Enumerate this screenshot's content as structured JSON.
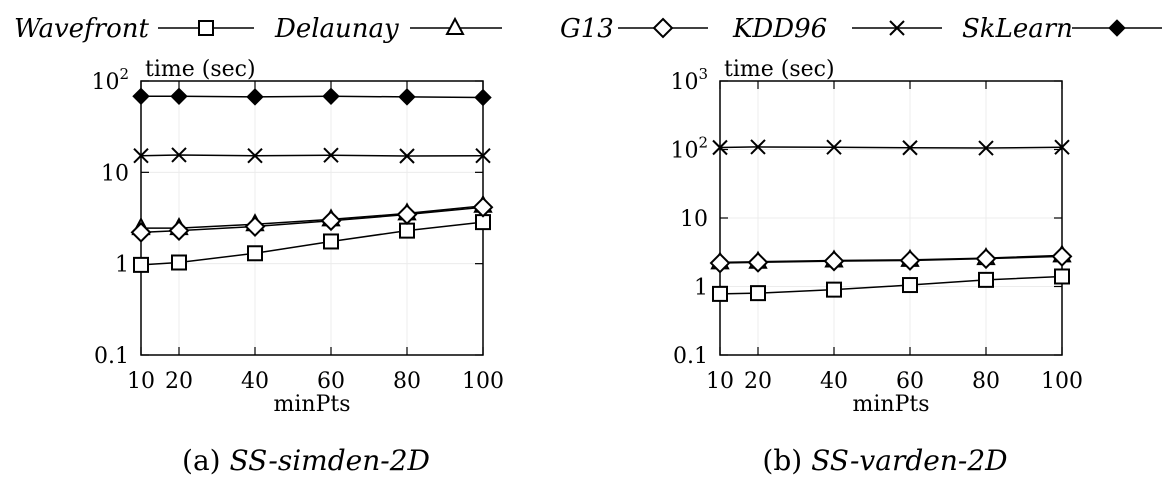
{
  "legend": [
    {
      "name": "Wavefront",
      "marker": "square"
    },
    {
      "name": "Delaunay",
      "marker": "triangle"
    },
    {
      "name": "G13",
      "marker": "diamond"
    },
    {
      "name": "KDD96",
      "marker": "cross"
    },
    {
      "name": "SkLearn",
      "marker": "filled-diamond"
    }
  ],
  "chart_data": [
    {
      "type": "line",
      "caption_prefix": "(a)",
      "caption_name": "SS-simden-2D",
      "ylabel": "time (sec)",
      "xlabel": "minPts",
      "yscale": "log",
      "ylim": [
        0.1,
        100
      ],
      "yticks": [
        {
          "value": 0.1,
          "base": "0.1",
          "exp": ""
        },
        {
          "value": 1,
          "base": "1",
          "exp": ""
        },
        {
          "value": 10,
          "base": "10",
          "exp": ""
        },
        {
          "value": 100,
          "base": "10",
          "exp": "2"
        }
      ],
      "xlim": [
        10,
        100
      ],
      "xticks": [
        10,
        20,
        40,
        60,
        80,
        100
      ],
      "x": [
        10,
        20,
        40,
        60,
        80,
        100
      ],
      "series": [
        {
          "name": "Wavefront",
          "marker": "square",
          "values": [
            0.97,
            1.03,
            1.3,
            1.75,
            2.3,
            2.85
          ]
        },
        {
          "name": "Delaunay",
          "marker": "triangle",
          "values": [
            2.45,
            2.45,
            2.7,
            3.05,
            3.55,
            4.3
          ]
        },
        {
          "name": "G13",
          "marker": "diamond",
          "values": [
            2.2,
            2.3,
            2.55,
            2.95,
            3.45,
            4.15
          ]
        },
        {
          "name": "KDD96",
          "marker": "cross",
          "values": [
            15.2,
            15.5,
            15.2,
            15.4,
            15.1,
            15.2
          ]
        },
        {
          "name": "SkLearn",
          "marker": "filled-diamond",
          "values": [
            68,
            68,
            67,
            68,
            67,
            66
          ]
        }
      ]
    },
    {
      "type": "line",
      "caption_prefix": "(b)",
      "caption_name": "SS-varden-2D",
      "ylabel": "time (sec)",
      "xlabel": "minPts",
      "yscale": "log",
      "ylim": [
        0.1,
        1000
      ],
      "yticks": [
        {
          "value": 0.1,
          "base": "0.1",
          "exp": ""
        },
        {
          "value": 1,
          "base": "1",
          "exp": ""
        },
        {
          "value": 10,
          "base": "10",
          "exp": ""
        },
        {
          "value": 100,
          "base": "10",
          "exp": "2"
        },
        {
          "value": 1000,
          "base": "10",
          "exp": "3"
        }
      ],
      "xlim": [
        10,
        100
      ],
      "xticks": [
        10,
        20,
        40,
        60,
        80,
        100
      ],
      "x": [
        10,
        20,
        40,
        60,
        80,
        100
      ],
      "series": [
        {
          "name": "Wavefront",
          "marker": "square",
          "values": [
            0.78,
            0.8,
            0.9,
            1.05,
            1.25,
            1.4
          ]
        },
        {
          "name": "Delaunay",
          "marker": "triangle",
          "values": [
            2.25,
            2.3,
            2.4,
            2.45,
            2.6,
            2.85
          ]
        },
        {
          "name": "G13",
          "marker": "diamond",
          "values": [
            2.2,
            2.25,
            2.35,
            2.4,
            2.55,
            2.75
          ]
        },
        {
          "name": "KDD96",
          "marker": "cross",
          "values": [
            107,
            109,
            108,
            106,
            105,
            108
          ]
        }
      ]
    }
  ]
}
